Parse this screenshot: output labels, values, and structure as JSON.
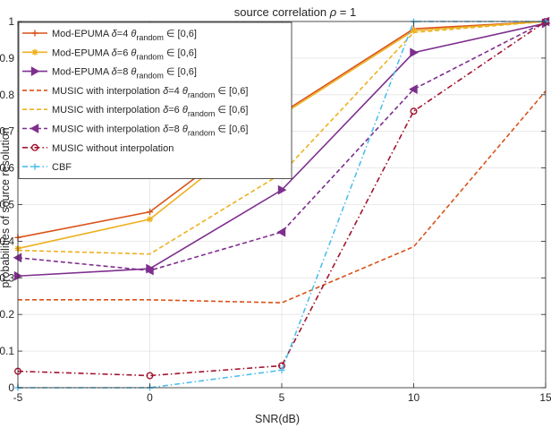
{
  "chart_data": {
    "type": "line",
    "title_parts": [
      "source correlation ",
      "ρ",
      " = 1"
    ],
    "xlabel": "SNR(dB)",
    "ylabel": "probabilities of source resolution",
    "x": [
      -5,
      0,
      5,
      10,
      15
    ],
    "xlim": [
      -5,
      15
    ],
    "ylim": [
      0,
      1
    ],
    "xticks": [
      "-5",
      "0",
      "5",
      "10",
      "15"
    ],
    "yticks": [
      "0",
      "0.1",
      "0.2",
      "0.3",
      "0.4",
      "0.5",
      "0.6",
      "0.7",
      "0.8",
      "0.9",
      "1"
    ],
    "grid": true,
    "legend_position": "top-left",
    "series": [
      {
        "legend": [
          "Mod-EPUMA ",
          "δ",
          "=4 ",
          "θ",
          "random",
          " ∈ [0,6]"
        ],
        "color": "#D95319",
        "dash": "solid",
        "marker": "plus",
        "values": [
          0.41,
          0.48,
          0.75,
          0.98,
          1.0
        ]
      },
      {
        "legend": [
          "Mod-EPUMA ",
          "δ",
          "=6 ",
          "θ",
          "random",
          " ∈ [0,6]"
        ],
        "color": "#EDB120",
        "dash": "solid",
        "marker": "asterisk",
        "values": [
          0.38,
          0.46,
          0.745,
          0.975,
          1.0
        ]
      },
      {
        "legend": [
          "Mod-EPUMA ",
          "δ",
          "=8 ",
          "θ",
          "random",
          " ∈ [0,6]"
        ],
        "color": "#7E2F8E",
        "dash": "solid",
        "marker": "triangle-right",
        "values": [
          0.305,
          0.325,
          0.54,
          0.915,
          0.995
        ]
      },
      {
        "legend": [
          "MUSIC with interpolation ",
          "δ",
          "=4 ",
          "θ",
          "random",
          " ∈ [0,6]"
        ],
        "color": "#D95319",
        "dash": "dashed",
        "marker": "none",
        "values": [
          0.24,
          0.24,
          0.232,
          0.385,
          0.81
        ]
      },
      {
        "legend": [
          "MUSIC with interpolation ",
          "δ",
          "=6 ",
          "θ",
          "random",
          " ∈ [0,6]"
        ],
        "color": "#EDB120",
        "dash": "dashed",
        "marker": "none",
        "values": [
          0.375,
          0.365,
          0.585,
          0.97,
          1.0
        ]
      },
      {
        "legend": [
          "MUSIC with interpolation ",
          "δ",
          "=8 ",
          "θ",
          "random",
          " ∈ [0,6]"
        ],
        "color": "#7E2F8E",
        "dash": "dashed",
        "marker": "triangle-left",
        "values": [
          0.355,
          0.32,
          0.425,
          0.815,
          1.0
        ]
      },
      {
        "legend": [
          "MUSIC without interpolation"
        ],
        "color": "#A2142F",
        "dash": "dashdot",
        "marker": "circle",
        "values": [
          0.045,
          0.033,
          0.06,
          0.755,
          1.0
        ]
      },
      {
        "legend": [
          "CBF"
        ],
        "color": "#4DBEEE",
        "dash": "dashdot",
        "marker": "plus",
        "values": [
          0.0,
          0.0,
          0.048,
          1.0,
          1.0
        ]
      }
    ]
  }
}
